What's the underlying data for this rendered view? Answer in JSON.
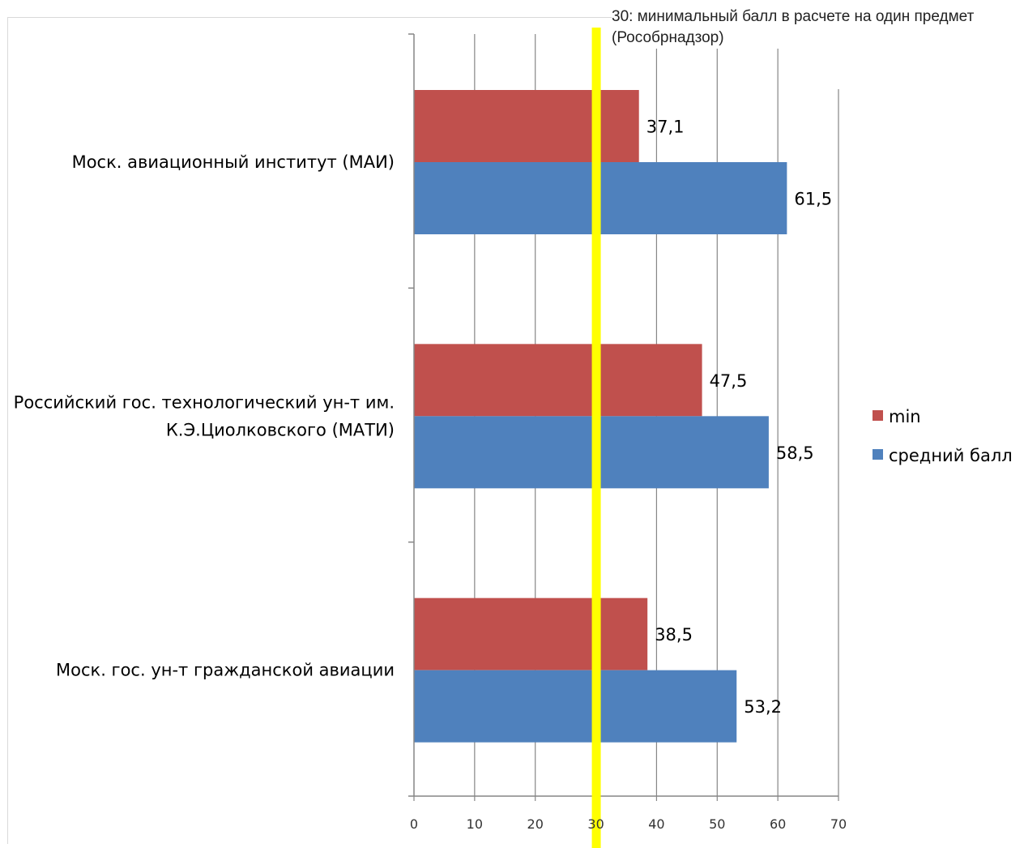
{
  "annotation": "30: минимальный балл в расчете на один предмет (Рособрнадзор)",
  "colors": {
    "min": "#C0504D",
    "avg": "#4F81BD",
    "threshold": "#FFFF00",
    "grid": "#868686"
  },
  "chart_data": {
    "type": "bar",
    "orientation": "horizontal",
    "categories": [
      [
        "Моск. авиационный институт (МАИ)"
      ],
      [
        "Российский гос. технологический ун-т им.",
        "К.Э.Циолковского (МАТИ)"
      ],
      [
        "Моск. гос. ун-т гражданской авиации"
      ]
    ],
    "series": [
      {
        "name": "min",
        "values": [
          37.1,
          47.5,
          38.5
        ],
        "labels": [
          "37,1",
          "47,5",
          "38,5"
        ]
      },
      {
        "name": "средний балл",
        "values": [
          61.5,
          58.5,
          53.2
        ],
        "labels": [
          "61,5",
          "58,5",
          "53,2"
        ]
      }
    ],
    "xlim": [
      0,
      70
    ],
    "xticks": [
      "0",
      "10",
      "20",
      "30",
      "40",
      "50",
      "60",
      "70"
    ],
    "threshold": 30,
    "grid": true,
    "legend_position": "right"
  }
}
